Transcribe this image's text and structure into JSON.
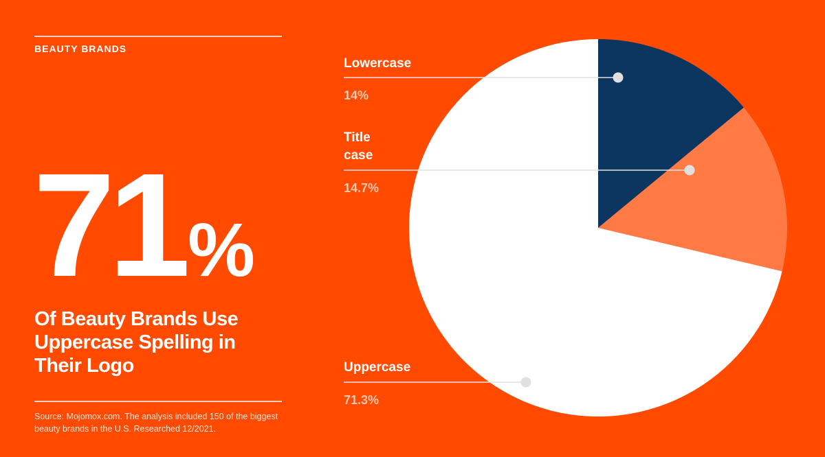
{
  "header": {
    "kicker": "BEAUTY BRANDS"
  },
  "highlight": {
    "number": "71",
    "percent_sign": "%",
    "headline": "Of Beauty Brands Use Uppercase Spelling in Their Logo"
  },
  "footer": {
    "source": "Source: Mojomox.com. The analysis included 150 of the biggest beauty brands in the U.S. Researched 12/2021."
  },
  "colors": {
    "background": "#FF4A00",
    "lowercase": "#0C3660",
    "title_case": "#FF7A45",
    "uppercase": "#FFFFFF",
    "leader": "#E0E0E0"
  },
  "chart_data": {
    "type": "pie",
    "title": "",
    "start_angle_deg": 0,
    "direction": "clockwise",
    "slices": [
      {
        "label": "Lowercase",
        "label_lines": [
          "Lowercase"
        ],
        "value": 14,
        "display": "14%",
        "color": "#0C3660"
      },
      {
        "label": "Title case",
        "label_lines": [
          "Title",
          "case"
        ],
        "value": 14.7,
        "display": "14.7%",
        "color": "#FF7A45"
      },
      {
        "label": "Uppercase",
        "label_lines": [
          "Uppercase"
        ],
        "value": 71.3,
        "display": "71.3%",
        "color": "#FFFFFF"
      }
    ]
  }
}
